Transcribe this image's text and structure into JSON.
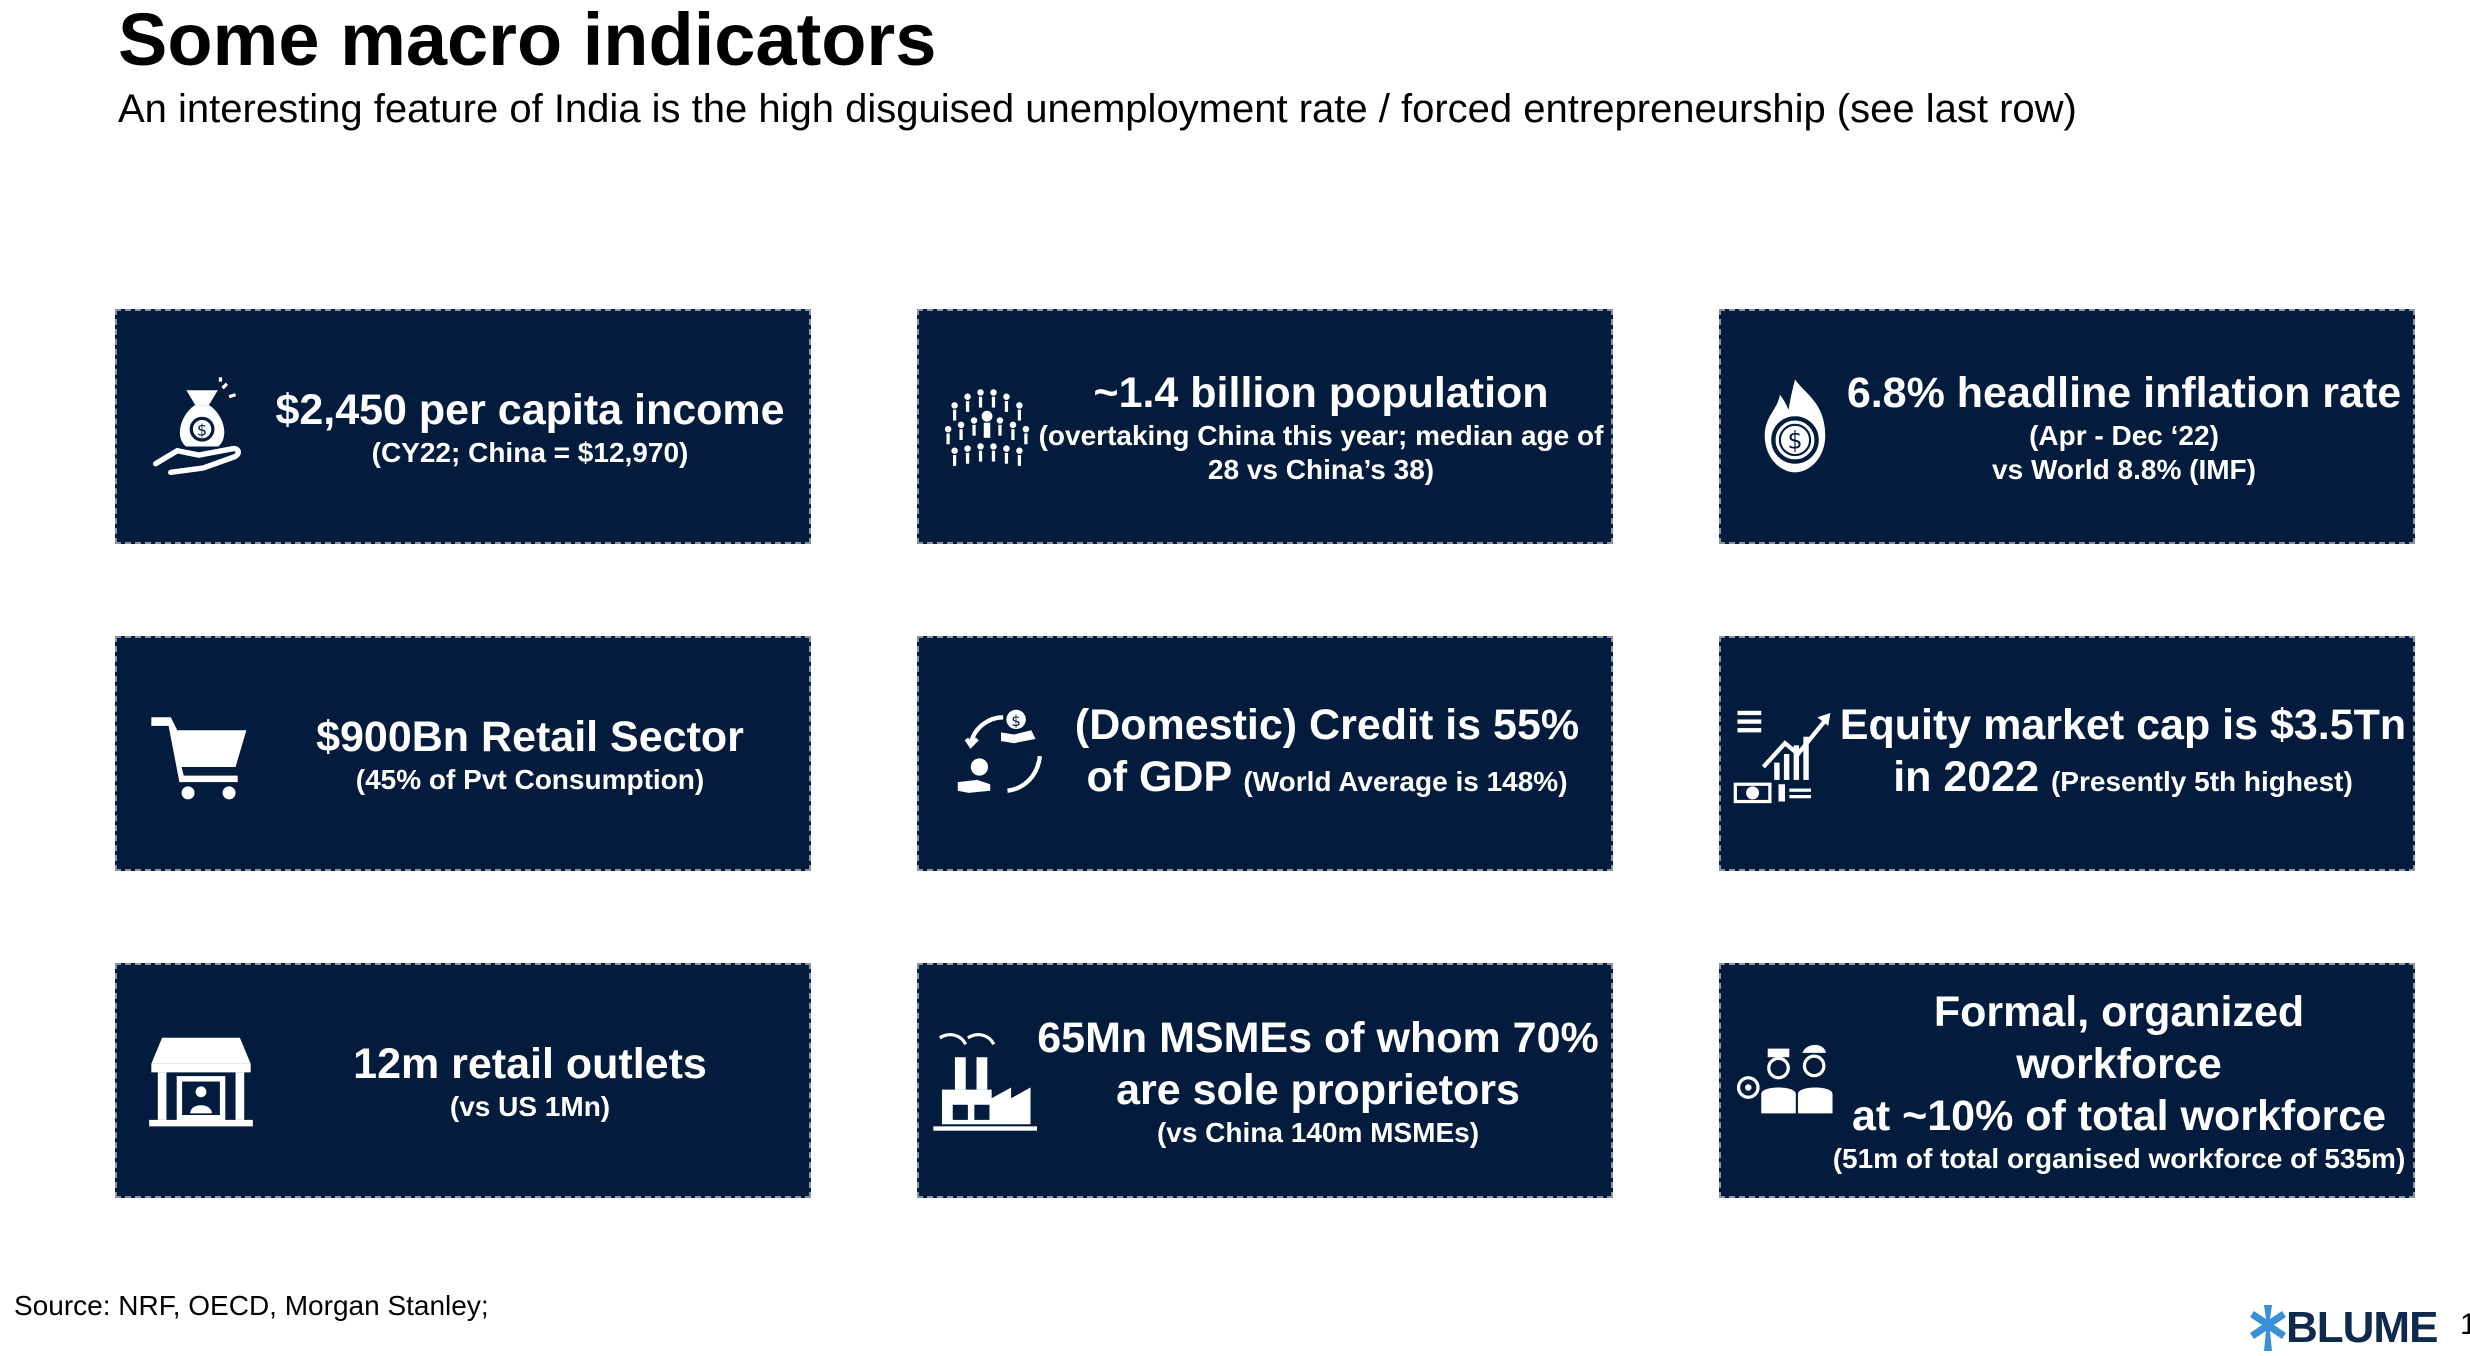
{
  "slide": {
    "title": "Some macro indicators",
    "subtitle": "An interesting feature of India is the high disguised unemployment rate / forced entrepreneurship (see last row)"
  },
  "cards": [
    {
      "icon": "money-bag-hand-icon",
      "headline": "$2,450 per capita income",
      "headline_line2": "",
      "inline_sub": "",
      "sub1": "(CY22; China = $12,970)",
      "sub2": ""
    },
    {
      "icon": "population-crowd-icon",
      "headline": "~1.4 billion population",
      "headline_line2": "",
      "inline_sub": "",
      "sub1": "(overtaking China this year; median age of",
      "sub2": "28 vs China’s 38)"
    },
    {
      "icon": "burning-dollar-icon",
      "headline": "6.8% headline inflation rate",
      "headline_line2": "",
      "inline_sub": "",
      "sub1": "(Apr - Dec ‘22)",
      "sub2": "vs World 8.8% (IMF)"
    },
    {
      "icon": "shopping-cart-icon",
      "headline": "$900Bn Retail Sector",
      "headline_line2": "",
      "inline_sub": "",
      "sub1": "(45% of Pvt Consumption)",
      "sub2": ""
    },
    {
      "icon": "credit-exchange-icon",
      "headline": "(Domestic) Credit is 55%",
      "headline_line2": "of GDP",
      "inline_sub": "(World Average is 148%)",
      "sub1": "",
      "sub2": ""
    },
    {
      "icon": "market-growth-icon",
      "headline": "Equity market cap is $3.5Tn",
      "headline_line2": "in 2022",
      "inline_sub": "(Presently 5th highest)",
      "sub1": "",
      "sub2": ""
    },
    {
      "icon": "storefront-icon",
      "headline": "12m retail outlets",
      "headline_line2": "",
      "inline_sub": "",
      "sub1": "(vs US 1Mn)",
      "sub2": ""
    },
    {
      "icon": "factory-icon",
      "headline": "65Mn MSMEs of whom 70%",
      "headline_line2": "are sole proprietors",
      "inline_sub": "",
      "sub1": "(vs China 140m MSMEs)",
      "sub2": ""
    },
    {
      "icon": "workforce-icon",
      "headline": "Formal, organized workforce",
      "headline_line2": "at ~10% of total workforce",
      "inline_sub": "",
      "sub1": "(51m of total organised workforce of 535m)",
      "sub2": ""
    }
  ],
  "footer": {
    "source": "Source: NRF, OECD, Morgan Stanley;",
    "logo": "BLUME",
    "page_number": "1"
  },
  "colors": {
    "card_background": "#031c3d",
    "card_text": "#ffffff",
    "logo_accent": "#3a8fd6"
  }
}
